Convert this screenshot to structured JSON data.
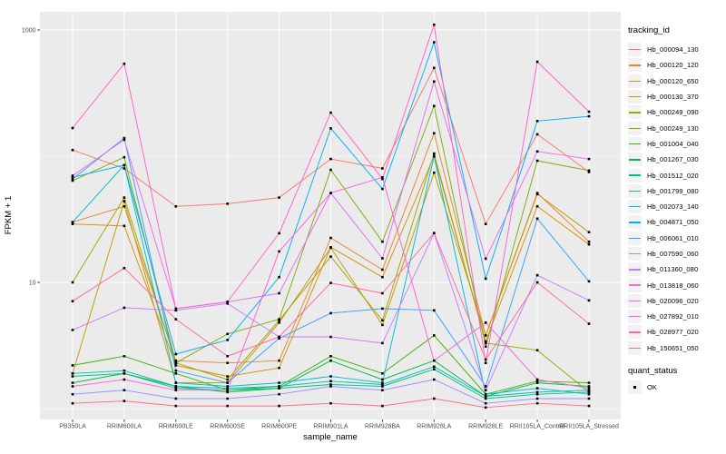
{
  "chart_data": {
    "type": "line",
    "title": "",
    "xlabel": "sample_name",
    "ylabel": "FPKM + 1",
    "y_axis": {
      "scale": "log10",
      "ticks": [
        {
          "label": "1000",
          "value": 1000
        },
        {
          "label": "10",
          "value": 10
        }
      ],
      "minor_gridline_values": [
        100,
        1
      ],
      "range_approx": [
        1,
        1400
      ]
    },
    "categories": [
      "PB350LA",
      "RRIM600LA",
      "RRIM600LE",
      "RRIM600SE",
      "RRIM600PE",
      "RRIM901LA",
      "RRIM928BA",
      "RRIM928LA",
      "RRIM928LE",
      "RRII105LA_Control",
      "RRII105LA_Stressed"
    ],
    "series": [
      {
        "name": "Hb_000094_130",
        "color": "#F8766D",
        "values": [
          112,
          80,
          40,
          42,
          47,
          95,
          80,
          500,
          29,
          149,
          75
        ]
      },
      {
        "name": "Hb_000120_120",
        "color": "#EA8331",
        "values": [
          30,
          40,
          2.4,
          2.3,
          2.4,
          22.5,
          12.6,
          152,
          3.8,
          51,
          21
        ]
      },
      {
        "name": "Hb_000120_650",
        "color": "#D89000",
        "values": [
          29,
          28,
          2.2,
          1.8,
          2.1,
          19,
          11,
          100,
          3.4,
          40,
          20
        ]
      },
      {
        "name": "Hb_000130_370",
        "color": "#C09B00",
        "values": [
          1.9,
          44,
          1.6,
          1.6,
          4.8,
          18.8,
          4.6,
          74,
          3.8,
          50,
          25
        ]
      },
      {
        "name": "Hb_000249_090",
        "color": "#A3A500",
        "values": [
          10,
          47,
          2.3,
          1.7,
          5,
          16,
          5,
          105,
          3.3,
          2.9,
          1.35
        ]
      },
      {
        "name": "Hb_000249_130",
        "color": "#7CAE00",
        "values": [
          64,
          98,
          2.3,
          3.9,
          5.1,
          78,
          21,
          250,
          3.1,
          92,
          77
        ]
      },
      {
        "name": "Hb_001004_040",
        "color": "#39B600",
        "values": [
          2.2,
          2.6,
          1.9,
          1.4,
          1.5,
          2.6,
          1.9,
          3.8,
          1.3,
          1.65,
          1.6
        ]
      },
      {
        "name": "Hb_001267_030",
        "color": "#00BB4E",
        "values": [
          1.6,
          1.9,
          1.5,
          1.35,
          1.45,
          2.4,
          1.7,
          2.4,
          1.25,
          1.6,
          1.5
        ]
      },
      {
        "name": "Hb_001512_020",
        "color": "#00C087",
        "values": [
          1.8,
          1.9,
          1.45,
          1.4,
          1.45,
          1.55,
          1.5,
          2.05,
          1.2,
          1.3,
          1.35
        ]
      },
      {
        "name": "Hb_001799_080",
        "color": "#00C0B2",
        "values": [
          1.9,
          2,
          1.5,
          1.45,
          1.5,
          1.65,
          1.55,
          2.15,
          1.25,
          1.35,
          1.4
        ]
      },
      {
        "name": "Hb_002073_140",
        "color": "#00BCD8",
        "values": [
          30,
          85,
          1.6,
          1.5,
          1.6,
          1.8,
          1.6,
          100,
          1.3,
          1.45,
          1.3
        ]
      },
      {
        "name": "Hb_004871_050",
        "color": "#00B0F6",
        "values": [
          68,
          85,
          2.7,
          3.5,
          11,
          166,
          55,
          800,
          10.7,
          190,
          207
        ]
      },
      {
        "name": "Hb_006061_010",
        "color": "#35A2FF",
        "values": [
          66,
          139,
          2,
          1.6,
          3.6,
          5.7,
          6.2,
          6,
          1.5,
          32,
          10.2
        ]
      },
      {
        "name": "Hb_007590_060",
        "color": "#9590FF",
        "values": [
          1.3,
          1.4,
          1.2,
          1.2,
          1.3,
          1.5,
          1.4,
          1.7,
          1.1,
          1.2,
          1.2
        ]
      },
      {
        "name": "Hb_011360_080",
        "color": "#C77CFF",
        "values": [
          4.2,
          6.3,
          6,
          6.8,
          3.7,
          3.7,
          3.3,
          24.6,
          1.4,
          11.4,
          7.2
        ]
      },
      {
        "name": "Hb_013818_060",
        "color": "#E76BF3",
        "values": [
          70,
          135,
          6.2,
          7,
          8.2,
          51,
          15.5,
          390,
          15.4,
          109,
          95
        ]
      },
      {
        "name": "Hb_020096_020",
        "color": "#FA62DB",
        "values": [
          1.5,
          1.7,
          1.4,
          1.4,
          17.6,
          51,
          68,
          2.4,
          4.8,
          1.7,
          1.45
        ]
      },
      {
        "name": "Hb_027892_010",
        "color": "#FF61CC",
        "values": [
          167,
          540,
          6.2,
          7,
          24.5,
          221,
          66,
          1100,
          2.3,
          560,
          225
        ]
      },
      {
        "name": "Hb_028977_020",
        "color": "#FF67A4",
        "values": [
          7.1,
          13,
          5.1,
          2.6,
          3.7,
          9.9,
          8.2,
          24.6,
          2.45,
          10,
          4.7
        ]
      },
      {
        "name": "Hb_150651_050",
        "color": "#FF6C91",
        "values": [
          1.1,
          1.15,
          1.05,
          1.05,
          1.05,
          1.1,
          1.05,
          1.2,
          1.02,
          1.1,
          1.05
        ]
      }
    ],
    "legend": {
      "tracking_id_title": "tracking_id",
      "quant_status_title": "quant_status",
      "quant_status_items": [
        {
          "label": "OK",
          "marker": "filled-black-square"
        }
      ]
    },
    "style": {
      "panel_bg": "#EBEBEB",
      "grid_color": "#FFFFFF",
      "point_color": "#000000",
      "tick_mark_color": "#333333",
      "tick_label_color": "#4D4D4D",
      "axis_title_color": "#000000",
      "legend_key_bg": "#F2F2F2",
      "background": "#FFFFFF"
    }
  }
}
